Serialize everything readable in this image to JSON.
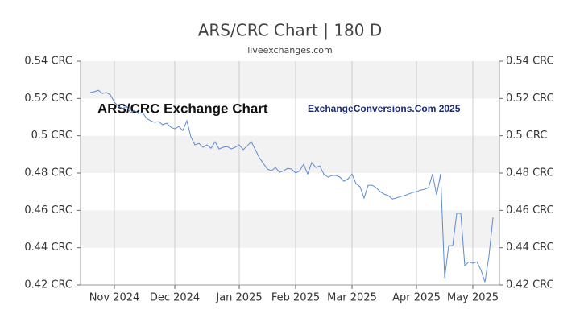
{
  "chart_data": {
    "type": "line",
    "title": "ARS/CRC Chart | 180 D",
    "subtitle": "liveexchanges.com",
    "annotations": [
      "ARS/CRC Exchange Chart",
      "ExchangeConversions.Com 2025"
    ],
    "color": "#5b8bd0",
    "grid": true,
    "categories": [
      null,
      null,
      null,
      null,
      null,
      null,
      "Nov 2024",
      null,
      null,
      null,
      null,
      null,
      null,
      null,
      null,
      null,
      null,
      null,
      null,
      null,
      null,
      "Dec 2024",
      null,
      null,
      null,
      null,
      null,
      null,
      null,
      null,
      null,
      null,
      null,
      null,
      null,
      null,
      null,
      "Jan 2025",
      null,
      null,
      null,
      null,
      null,
      null,
      null,
      null,
      null,
      null,
      null,
      null,
      null,
      "Feb 2025",
      null,
      null,
      null,
      null,
      null,
      null,
      null,
      null,
      null,
      null,
      null,
      null,
      null,
      "Mar 2025",
      null,
      null,
      null,
      null,
      null,
      null,
      null,
      null,
      null,
      null,
      null,
      null,
      null,
      null,
      null,
      "Apr 2025",
      null,
      null,
      null,
      null,
      null,
      null,
      null,
      null,
      null,
      null,
      null,
      null,
      null,
      "May 2025",
      null,
      null,
      null,
      null,
      null
    ],
    "values": [
      0.5232,
      0.5236,
      0.5244,
      0.5227,
      0.5232,
      0.5219,
      0.518,
      0.5158,
      0.5145,
      0.5158,
      0.5124,
      0.5136,
      0.5119,
      0.5124,
      0.5093,
      0.508,
      0.5072,
      0.5076,
      0.5059,
      0.5067,
      0.5046,
      0.5037,
      0.505,
      0.5028,
      0.508,
      0.4994,
      0.4951,
      0.4959,
      0.4938,
      0.4951,
      0.4933,
      0.4968,
      0.4929,
      0.4938,
      0.4942,
      0.4929,
      0.4938,
      0.4951,
      0.4925,
      0.4946,
      0.4968,
      0.4925,
      0.4882,
      0.4851,
      0.4821,
      0.4812,
      0.483,
      0.4804,
      0.4812,
      0.4825,
      0.4821,
      0.48,
      0.4812,
      0.4847,
      0.4795,
      0.4856,
      0.483,
      0.4838,
      0.4795,
      0.4778,
      0.4787,
      0.4787,
      0.4778,
      0.4756,
      0.4769,
      0.4795,
      0.4743,
      0.4726,
      0.4666,
      0.4735,
      0.4735,
      0.4722,
      0.47,
      0.4687,
      0.4679,
      0.4661,
      0.4666,
      0.4674,
      0.4679,
      0.4687,
      0.4696,
      0.47,
      0.4709,
      0.4713,
      0.4722,
      0.4795,
      0.4683,
      0.4795,
      0.4238,
      0.4411,
      0.4411,
      0.4584,
      0.4584,
      0.4303,
      0.4324,
      0.4316,
      0.4324,
      0.4281,
      0.4216,
      0.4355,
      0.4562
    ],
    "ylim": [
      0.42,
      0.54
    ],
    "yticks": [
      {
        "value": 0.42,
        "label": "0.42 CRC"
      },
      {
        "value": 0.44,
        "label": "0.44 CRC"
      },
      {
        "value": 0.46,
        "label": "0.46 CRC"
      },
      {
        "value": 0.48,
        "label": "0.48 CRC"
      },
      {
        "value": 0.5,
        "label": "0.5 CRC"
      },
      {
        "value": 0.52,
        "label": "0.52 CRC"
      },
      {
        "value": 0.54,
        "label": "0.54 CRC"
      }
    ]
  }
}
